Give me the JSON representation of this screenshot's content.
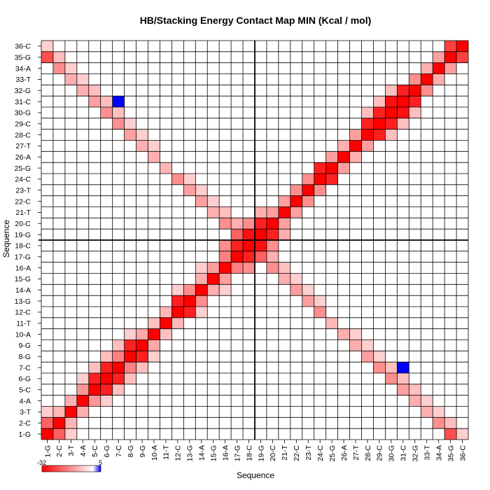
{
  "chart_data": {
    "type": "heatmap",
    "title": "HB/Stacking Energy Contact Map MIN (Kcal / mol)",
    "xlabel": "Sequence",
    "ylabel": "Sequence",
    "labels": [
      "1-G",
      "2-C",
      "3-T",
      "4-A",
      "5-C",
      "6-G",
      "7-C",
      "8-G",
      "9-G",
      "10-A",
      "11-T",
      "12-C",
      "13-G",
      "14-A",
      "15-G",
      "16-A",
      "17-G",
      "18-C",
      "19-G",
      "20-C",
      "21-T",
      "22-C",
      "23-T",
      "24-C",
      "25-G",
      "26-A",
      "27-T",
      "28-C",
      "29-C",
      "30-G",
      "31-C",
      "32-G",
      "33-T",
      "34-A",
      "35-G",
      "36-C"
    ],
    "colorbar": {
      "min": -32,
      "max": 5,
      "min_label": "-32",
      "max_label": "5"
    },
    "colors": {
      "negative": "#ff0000",
      "zero": "#ffffff",
      "positive": "#0000ff",
      "grid": "#000000"
    },
    "center_lines": true,
    "diagonal_value": -32,
    "near_diagonal_value": -20,
    "blue_pair": {
      "i": 7,
      "j": 31,
      "value": 5
    },
    "strong_pairs": [
      {
        "i": 1,
        "j": 2,
        "value": -20
      },
      {
        "i": 2,
        "j": 3,
        "value": -9
      },
      {
        "i": 3,
        "j": 4,
        "value": -10
      },
      {
        "i": 4,
        "j": 5,
        "value": -13
      },
      {
        "i": 5,
        "j": 6,
        "value": -28
      },
      {
        "i": 6,
        "j": 7,
        "value": -28
      },
      {
        "i": 7,
        "j": 8,
        "value": -16
      },
      {
        "i": 8,
        "j": 9,
        "value": -28
      },
      {
        "i": 9,
        "j": 10,
        "value": -11
      },
      {
        "i": 10,
        "j": 11,
        "value": -8
      },
      {
        "i": 11,
        "j": 12,
        "value": -9
      },
      {
        "i": 12,
        "j": 13,
        "value": -28
      },
      {
        "i": 13,
        "j": 14,
        "value": -14
      },
      {
        "i": 14,
        "j": 15,
        "value": -10
      },
      {
        "i": 15,
        "j": 16,
        "value": -12
      },
      {
        "i": 16,
        "j": 17,
        "value": -16
      },
      {
        "i": 17,
        "j": 18,
        "value": -28
      },
      {
        "i": 18,
        "j": 19,
        "value": -30
      },
      {
        "i": 19,
        "j": 20,
        "value": -28
      },
      {
        "i": 20,
        "j": 21,
        "value": -12
      },
      {
        "i": 21,
        "j": 22,
        "value": -12
      },
      {
        "i": 22,
        "j": 23,
        "value": -14
      },
      {
        "i": 23,
        "j": 24,
        "value": -14
      },
      {
        "i": 24,
        "j": 25,
        "value": -28
      },
      {
        "i": 25,
        "j": 26,
        "value": -12
      },
      {
        "i": 26,
        "j": 27,
        "value": -10
      },
      {
        "i": 27,
        "j": 28,
        "value": -12
      },
      {
        "i": 28,
        "j": 29,
        "value": -28
      },
      {
        "i": 29,
        "j": 30,
        "value": -28
      },
      {
        "i": 30,
        "j": 31,
        "value": -30
      },
      {
        "i": 31,
        "j": 32,
        "value": -28
      },
      {
        "i": 32,
        "j": 33,
        "value": -14
      },
      {
        "i": 33,
        "j": 34,
        "value": -10
      },
      {
        "i": 34,
        "j": 35,
        "value": -12
      },
      {
        "i": 35,
        "j": 36,
        "value": -24
      },
      {
        "i": 1,
        "j": 3,
        "value": -6
      },
      {
        "i": 4,
        "j": 6,
        "value": -6
      },
      {
        "i": 5,
        "j": 7,
        "value": -8
      },
      {
        "i": 6,
        "j": 8,
        "value": -8
      },
      {
        "i": 7,
        "j": 9,
        "value": -8
      },
      {
        "i": 8,
        "j": 10,
        "value": -6
      },
      {
        "i": 12,
        "j": 14,
        "value": -6
      },
      {
        "i": 14,
        "j": 16,
        "value": -6
      },
      {
        "i": 16,
        "j": 18,
        "value": -14
      },
      {
        "i": 17,
        "j": 19,
        "value": -18
      },
      {
        "i": 18,
        "j": 20,
        "value": -14
      },
      {
        "i": 19,
        "j": 21,
        "value": -10
      },
      {
        "i": 28,
        "j": 30,
        "value": -8
      },
      {
        "i": 29,
        "j": 31,
        "value": -8
      },
      {
        "i": 30,
        "j": 32,
        "value": -8
      }
    ],
    "antidiagonal_pairs": [
      {
        "i": 1,
        "j": 35,
        "value": -22
      },
      {
        "i": 2,
        "j": 34,
        "value": -14
      },
      {
        "i": 3,
        "j": 33,
        "value": -10
      },
      {
        "i": 4,
        "j": 32,
        "value": -10
      },
      {
        "i": 5,
        "j": 31,
        "value": -12
      },
      {
        "i": 6,
        "j": 30,
        "value": -14
      },
      {
        "i": 7,
        "j": 29,
        "value": -14
      },
      {
        "i": 8,
        "j": 28,
        "value": -12
      },
      {
        "i": 9,
        "j": 27,
        "value": -10
      },
      {
        "i": 10,
        "j": 26,
        "value": -10
      },
      {
        "i": 11,
        "j": 25,
        "value": -9
      },
      {
        "i": 12,
        "j": 24,
        "value": -14
      },
      {
        "i": 13,
        "j": 23,
        "value": -12
      },
      {
        "i": 14,
        "j": 22,
        "value": -12
      },
      {
        "i": 15,
        "j": 21,
        "value": -10
      },
      {
        "i": 16,
        "j": 20,
        "value": -14
      },
      {
        "i": 17,
        "j": 19,
        "value": -20
      },
      {
        "i": 1,
        "j": 36,
        "value": -6
      },
      {
        "i": 2,
        "j": 35,
        "value": -8
      },
      {
        "i": 3,
        "j": 34,
        "value": -6
      },
      {
        "i": 4,
        "j": 33,
        "value": -6
      },
      {
        "i": 5,
        "j": 32,
        "value": -8
      },
      {
        "i": 6,
        "j": 31,
        "value": -8
      },
      {
        "i": 7,
        "j": 30,
        "value": -8
      },
      {
        "i": 8,
        "j": 29,
        "value": -6
      },
      {
        "i": 9,
        "j": 28,
        "value": -6
      },
      {
        "i": 10,
        "j": 27,
        "value": -6
      },
      {
        "i": 13,
        "j": 24,
        "value": -6
      },
      {
        "i": 14,
        "j": 23,
        "value": -6
      },
      {
        "i": 15,
        "j": 22,
        "value": -6
      },
      {
        "i": 16,
        "j": 21,
        "value": -8
      },
      {
        "i": 17,
        "j": 20,
        "value": -10
      },
      {
        "i": 18,
        "j": 19,
        "value": -14
      }
    ]
  }
}
